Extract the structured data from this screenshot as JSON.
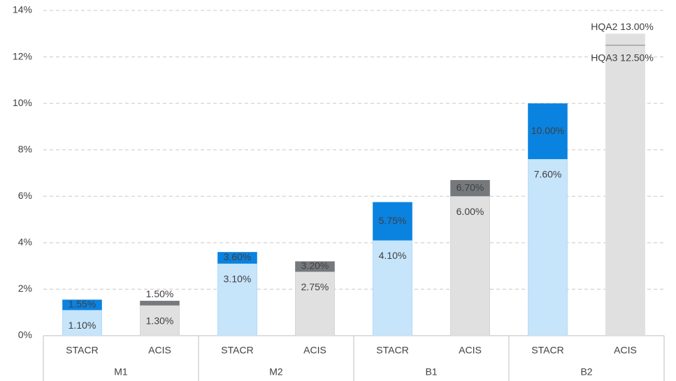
{
  "chart_data": {
    "type": "bar",
    "overlap": true,
    "categories": [
      "STACR",
      "ACIS",
      "STACR",
      "ACIS",
      "STACR",
      "ACIS",
      "STACR",
      "ACIS"
    ],
    "groups": [
      "M1",
      "M2",
      "B1",
      "B2"
    ],
    "series": [
      {
        "colors": [
          "#0a82e0",
          "#76797c",
          "#0a82e0",
          "#76797c",
          "#0a82e0",
          "#76797c",
          "#0a82e0",
          "#e0e0e0"
        ],
        "values": [
          1.55,
          1.5,
          3.6,
          3.2,
          5.75,
          6.7,
          10.0,
          13.0
        ],
        "value_labels": [
          "1.55%",
          "1.50%",
          "3.60%",
          "3.20%",
          "5.75%",
          "6.70%",
          "10.00%",
          "HQA2 13.00%"
        ]
      },
      {
        "colors": [
          "#c6e4fa",
          "#e0e0e0",
          "#c6e4fa",
          "#e0e0e0",
          "#c6e4fa",
          "#e0e0e0",
          "#c6e4fa",
          "#e0e0e0"
        ],
        "values": [
          1.1,
          1.3,
          3.1,
          2.75,
          4.1,
          6.0,
          7.6,
          12.5
        ],
        "value_labels": [
          "1.10%",
          "1.30%",
          "3.10%",
          "2.75%",
          "4.10%",
          "6.00%",
          "7.60%",
          "HQA3 12.50%"
        ]
      }
    ],
    "ylim": [
      0,
      14
    ],
    "yticks": [
      {
        "value": 0,
        "label": "0%"
      },
      {
        "value": 2,
        "label": "2%"
      },
      {
        "value": 4,
        "label": "4%"
      },
      {
        "value": 6,
        "label": "6%"
      },
      {
        "value": 8,
        "label": "8%"
      },
      {
        "value": 10,
        "label": "10%"
      },
      {
        "value": 12,
        "label": "12%"
      },
      {
        "value": 14,
        "label": "14%"
      }
    ],
    "grid": true
  }
}
